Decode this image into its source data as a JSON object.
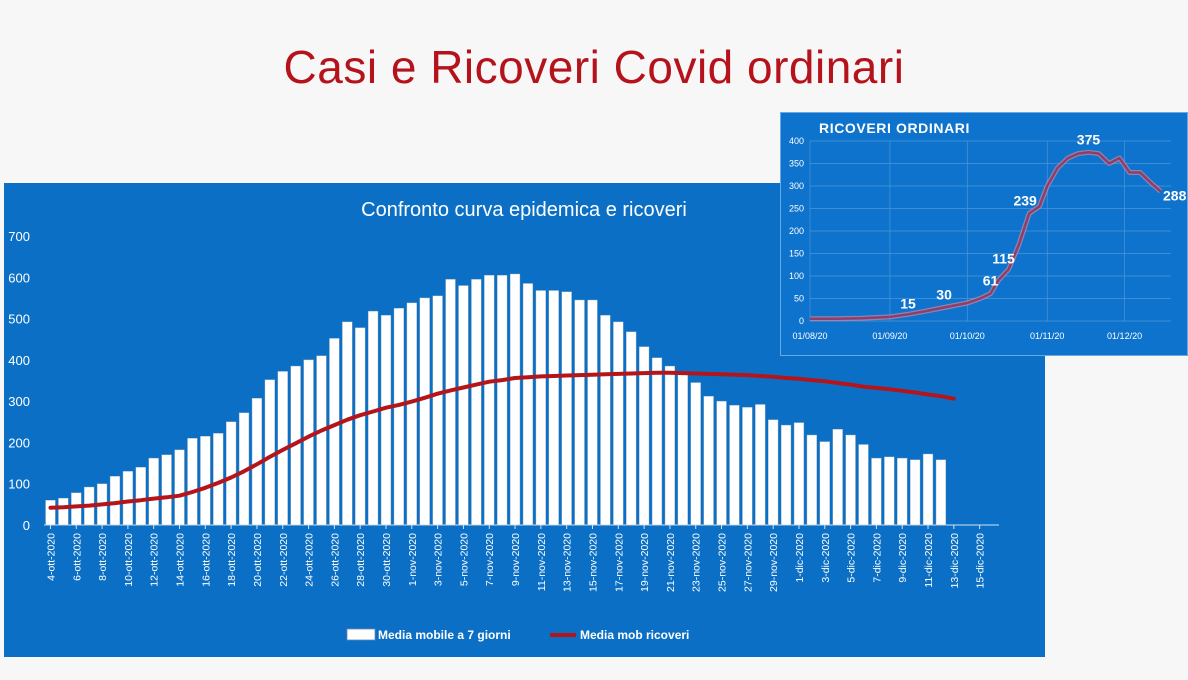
{
  "slide_title": "Casi e Ricoveri Covid ordinari",
  "colors": {
    "title": "#b5121b",
    "panel_bg": "#0b70c5",
    "bar_fill": "#ffffff",
    "line_main": "#b3151b",
    "inset_line": "#8c3f68",
    "text_on_blue": "#ffffff"
  },
  "chart_data": [
    {
      "type": "bar",
      "title": "Confronto curva epidemica e ricoveri",
      "ylim": [
        0,
        700
      ],
      "yticks": [
        "0",
        "100",
        "200",
        "300",
        "400",
        "500",
        "600",
        "700"
      ],
      "grid": false,
      "legend_position": "bottom",
      "x_labels": [
        "4-ott-2020",
        "6-ott-2020",
        "8-ott-2020",
        "10-ott-2020",
        "12-ott-2020",
        "14-ott-2020",
        "16-ott-2020",
        "18-ott-2020",
        "20-ott-2020",
        "22-ott-2020",
        "24-ott-2020",
        "26-ott-2020",
        "28-ott-2020",
        "30-ott-2020",
        "1-nov-2020",
        "3-nov-2020",
        "5-nov-2020",
        "7-nov-2020",
        "9-nov-2020",
        "11-nov-2020",
        "13-nov-2020",
        "15-nov-2020",
        "17-nov-2020",
        "19-nov-2020",
        "21-nov-2020",
        "23-nov-2020",
        "25-nov-2020",
        "27-nov-2020",
        "29-nov-2020",
        "1-dic-2020",
        "3-dic-2020",
        "5-dic-2020",
        "7-dic-2020",
        "9-dic-2020",
        "11-dic-2020",
        "13-dic-2020",
        "15-dic-2020"
      ],
      "series": [
        {
          "name": "Media mobile a 7 giorni",
          "kind": "bar",
          "values": [
            60,
            65,
            78,
            92,
            100,
            118,
            130,
            140,
            162,
            170,
            182,
            210,
            215,
            222,
            250,
            272,
            307,
            352,
            372,
            385,
            400,
            410,
            452,
            492,
            478,
            518,
            508,
            525,
            538,
            550,
            555,
            595,
            580,
            595,
            605,
            605,
            608,
            585,
            568,
            568,
            565,
            545,
            545,
            508,
            492,
            468,
            432,
            405,
            385,
            370,
            345,
            312,
            300,
            290,
            285,
            292,
            255,
            242,
            248,
            218,
            202,
            232,
            218,
            195,
            162,
            165,
            162,
            158,
            172,
            158
          ]
        },
        {
          "name": "Media mob ricoveri",
          "kind": "line",
          "values": [
            42,
            43,
            45,
            47,
            50,
            53,
            57,
            60,
            64,
            67,
            71,
            80,
            90,
            102,
            115,
            130,
            147,
            165,
            182,
            198,
            214,
            229,
            242,
            255,
            266,
            275,
            284,
            291,
            299,
            308,
            318,
            326,
            333,
            340,
            347,
            351,
            356,
            358,
            360,
            361,
            362,
            363,
            364,
            365,
            366,
            367,
            368,
            369,
            369,
            368,
            367,
            366,
            365,
            364,
            363,
            361,
            359,
            356,
            354,
            351,
            348,
            344,
            340,
            335,
            332,
            329,
            325,
            321,
            316,
            312,
            306
          ]
        }
      ]
    },
    {
      "type": "line",
      "title": "RICOVERI ORDINARI",
      "ylim": [
        0,
        400
      ],
      "yticks": [
        "0",
        "50",
        "100",
        "150",
        "200",
        "250",
        "300",
        "350",
        "400"
      ],
      "x_labels": [
        "01/08/20",
        "01/09/20",
        "01/10/20",
        "01/11/20",
        "01/12/20"
      ],
      "x_days": [
        0,
        31,
        61,
        92,
        122
      ],
      "x_range_days": [
        0,
        140
      ],
      "grid": true,
      "series": [
        {
          "points": [
            [
              0,
              5
            ],
            [
              10,
              5
            ],
            [
              20,
              6
            ],
            [
              31,
              9
            ],
            [
              38,
              15
            ],
            [
              45,
              22
            ],
            [
              52,
              30
            ],
            [
              61,
              40
            ],
            [
              66,
              50
            ],
            [
              70,
              61
            ],
            [
              73,
              90
            ],
            [
              77,
              115
            ],
            [
              81,
              170
            ],
            [
              85,
              239
            ],
            [
              89,
              255
            ],
            [
              92,
              300
            ],
            [
              96,
              340
            ],
            [
              100,
              362
            ],
            [
              104,
              372
            ],
            [
              108,
              375
            ],
            [
              112,
              372
            ],
            [
              116,
              350
            ],
            [
              120,
              362
            ],
            [
              124,
              330
            ],
            [
              128,
              330
            ],
            [
              132,
              308
            ],
            [
              136,
              288
            ]
          ]
        }
      ],
      "annotations": [
        {
          "label": "15",
          "x": 38,
          "y": 15
        },
        {
          "label": "30",
          "x": 52,
          "y": 30
        },
        {
          "label": "61",
          "x": 70,
          "y": 61
        },
        {
          "label": "115",
          "x": 77,
          "y": 115
        },
        {
          "label": "239",
          "x": 85,
          "y": 239
        },
        {
          "label": "375",
          "x": 108,
          "y": 375
        },
        {
          "label": "288",
          "x": 136,
          "y": 288
        }
      ]
    }
  ]
}
